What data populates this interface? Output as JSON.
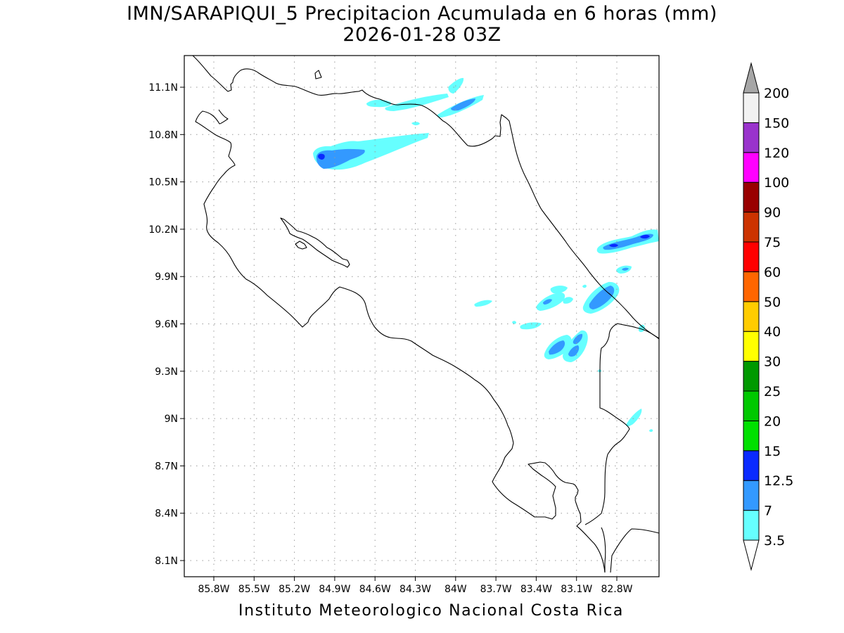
{
  "title": {
    "line1": "IMN/SARAPIQUI_5 Precipitacion Acumulada en 6 horas (mm)",
    "line2": "2026-01-28 03Z"
  },
  "footer": "Instituto Meteorologico Nacional Costa Rica",
  "map": {
    "lat_labels": [
      "11.1N",
      "10.8N",
      "10.5N",
      "10.2N",
      "9.9N",
      "9.6N",
      "9.3N",
      "9N",
      "8.7N",
      "8.4N",
      "8.1N"
    ],
    "lon_labels": [
      "85.8W",
      "85.5W",
      "85.2W",
      "84.9W",
      "84.6W",
      "84.3W",
      "84W",
      "83.7W",
      "83.4W",
      "83.1W",
      "82.8W"
    ],
    "grid": "dotted",
    "region": "Costa Rica"
  },
  "colorbar": {
    "labels": [
      "3.5",
      "7",
      "12.5",
      "15",
      "20",
      "25",
      "30",
      "40",
      "50",
      "60",
      "75",
      "90",
      "100",
      "120",
      "150",
      "200"
    ],
    "colors": [
      "#66ffff",
      "#3399ff",
      "#0a2aff",
      "#00e000",
      "#00c800",
      "#009900",
      "#ffff00",
      "#ffcc00",
      "#ff6600",
      "#ff0000",
      "#cc3300",
      "#990000",
      "#ff00ff",
      "#9933cc",
      "#f2f2f2"
    ],
    "under_color": "#ffffff",
    "over_color": "#a6a6a6"
  }
}
